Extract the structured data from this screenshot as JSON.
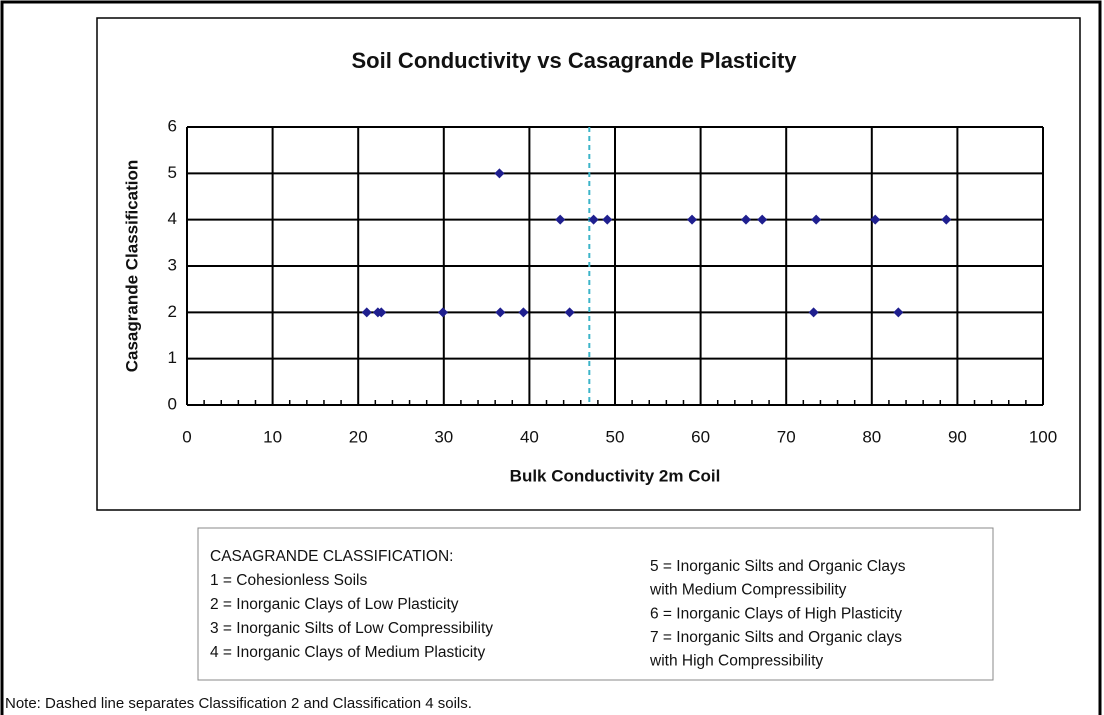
{
  "chart_data": {
    "type": "scatter",
    "title": "Soil Conductivity vs Casagrande Plasticity",
    "x_label": "Bulk Conductivity 2m Coil",
    "y_label": "Casagrande Classification",
    "x": [
      36.5,
      43.6,
      47.5,
      49.1,
      59,
      65.3,
      67.2,
      73.5,
      80.4,
      88.7,
      21,
      22.3,
      22.7,
      29.9,
      36.6,
      39.3,
      44.7,
      73.2,
      83.1
    ],
    "values": [
      5,
      4,
      4,
      4,
      4,
      4,
      4,
      4,
      4,
      4,
      2,
      2,
      2,
      2,
      2,
      2,
      2,
      2,
      2
    ],
    "color": "#1f1f8f",
    "xlim": [
      0,
      100
    ],
    "ylim": [
      0,
      6
    ],
    "xticks": [
      0,
      10,
      20,
      30,
      40,
      50,
      60,
      70,
      80,
      90,
      100
    ],
    "yticks": [
      0,
      1,
      2,
      3,
      4,
      5,
      6
    ],
    "grid": true,
    "divider_x": 47,
    "divider_color": "#3cb4c8",
    "key": {
      "heading": "CASAGRANDE CLASSIFICATION:",
      "left": [
        "1 = Cohesionless Soils",
        "2 = Inorganic Clays of Low Plasticity",
        "3 = Inorganic Silts of Low Compressibility",
        "4 = Inorganic Clays of Medium Plasticity"
      ],
      "right": [
        "5 = Inorganic Silts and Organic Clays",
        "with Medium Compressibility",
        "6 = Inorganic Clays of High Plasticity",
        "7 = Inorganic Silts and Organic clays",
        "with High Compressibility"
      ]
    },
    "note": "Note:  Dashed line separates Classification 2 and Classification 4 soils."
  }
}
